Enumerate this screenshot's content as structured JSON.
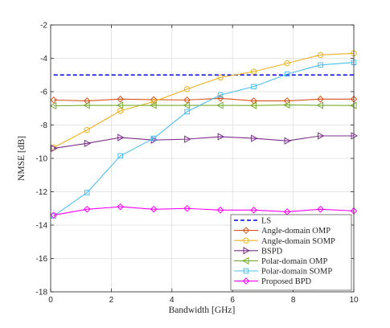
{
  "chart_data": {
    "type": "line",
    "xlabel": "Bandwidth [GHz]",
    "ylabel": "NMSE [dB]",
    "xlim": [
      0,
      10
    ],
    "ylim": [
      -18,
      -2
    ],
    "xticks": [
      0,
      2,
      4,
      6,
      8,
      10
    ],
    "yticks": [
      -18,
      -16,
      -14,
      -12,
      -10,
      -8,
      -6,
      -4,
      -2
    ],
    "xtick_labels": [
      "0",
      "2",
      "4",
      "6",
      "8",
      "10"
    ],
    "ytick_labels": [
      "-18",
      "-16",
      "-14",
      "-12",
      "-10",
      "-8",
      "-6",
      "-4",
      "-2"
    ],
    "grid": true,
    "legend_position": "bottom-right",
    "x": [
      0.1,
      1.2,
      2.3,
      3.4,
      4.5,
      5.6,
      6.7,
      7.8,
      8.9,
      10
    ],
    "series": [
      {
        "name": "LS",
        "color": "#0000ff",
        "line_style": "dashed",
        "marker": "none",
        "values": [
          -5,
          -5,
          -5,
          -5,
          -5,
          -5,
          -5,
          -5,
          -5,
          -5
        ]
      },
      {
        "name": "Angle-domain OMP",
        "color": "#d95319",
        "line_style": "solid",
        "marker": "diamond",
        "values": [
          -6.5,
          -6.55,
          -6.45,
          -6.48,
          -6.5,
          -6.4,
          -6.55,
          -6.55,
          -6.45,
          -6.45
        ]
      },
      {
        "name": "Angle-domain SOMP",
        "color": "#edb120",
        "line_style": "solid",
        "marker": "circle",
        "values": [
          -9.35,
          -8.3,
          -7.15,
          -6.6,
          -5.85,
          -5.15,
          -4.8,
          -4.3,
          -3.8,
          -3.7
        ]
      },
      {
        "name": "BSPD",
        "color": "#7e2f8e",
        "line_style": "solid",
        "marker": "triangle-right",
        "values": [
          -9.4,
          -9.1,
          -8.75,
          -8.9,
          -8.85,
          -8.7,
          -8.8,
          -8.95,
          -8.65,
          -8.65
        ]
      },
      {
        "name": "Polar-domain OMP",
        "color": "#77ac30",
        "line_style": "solid",
        "marker": "triangle-left",
        "values": [
          -6.85,
          -6.82,
          -6.82,
          -6.82,
          -6.82,
          -6.82,
          -6.83,
          -6.8,
          -6.82,
          -6.83
        ]
      },
      {
        "name": "Polar-domain SOMP",
        "color": "#4dbeee",
        "line_style": "solid",
        "marker": "square",
        "values": [
          -13.45,
          -12.05,
          -9.85,
          -8.8,
          -7.2,
          -6.2,
          -5.7,
          -4.95,
          -4.4,
          -4.25
        ]
      },
      {
        "name": "Proposed BPD",
        "color": "#ff00ff",
        "line_style": "solid",
        "marker": "diamond",
        "values": [
          -13.4,
          -13.05,
          -12.9,
          -13.05,
          -13.0,
          -13.1,
          -13.1,
          -13.2,
          -13.05,
          -13.15
        ]
      }
    ]
  }
}
